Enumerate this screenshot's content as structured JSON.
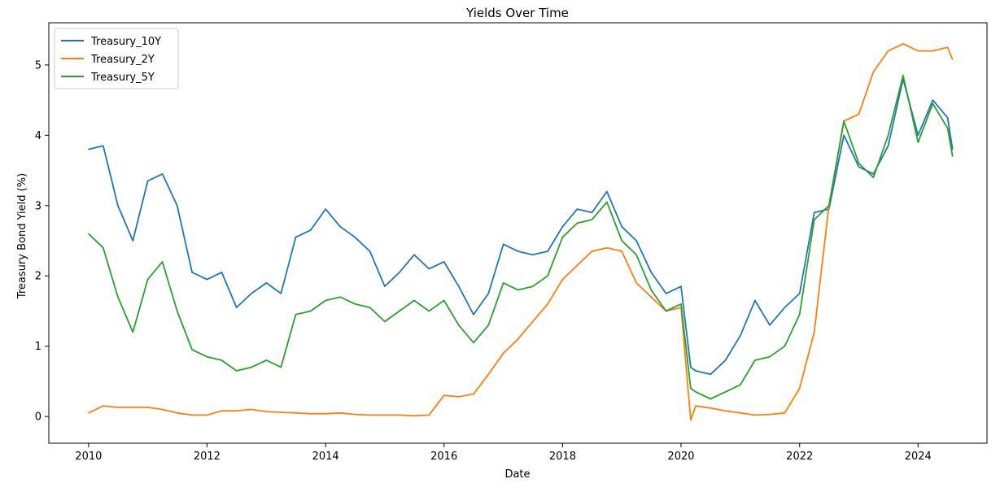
{
  "chart_data": {
    "type": "line",
    "title": "Yields Over Time",
    "xlabel": "Date",
    "ylabel": "Treasury Bond Yield (%)",
    "xlim": [
      "2009-05-01",
      "2025-03-01"
    ],
    "ylim": [
      -0.38,
      5.6
    ],
    "x_ticks": [
      "2010",
      "2012",
      "2014",
      "2016",
      "2018",
      "2020",
      "2022",
      "2024"
    ],
    "y_ticks": [
      0,
      1,
      2,
      3,
      4,
      5
    ],
    "grid": false,
    "legend_position": "top-left",
    "x": [
      "2010-01",
      "2010-04",
      "2010-07",
      "2010-10",
      "2011-01",
      "2011-04",
      "2011-07",
      "2011-10",
      "2012-01",
      "2012-04",
      "2012-07",
      "2012-10",
      "2013-01",
      "2013-04",
      "2013-07",
      "2013-10",
      "2014-01",
      "2014-04",
      "2014-07",
      "2014-10",
      "2015-01",
      "2015-04",
      "2015-07",
      "2015-10",
      "2016-01",
      "2016-04",
      "2016-07",
      "2016-10",
      "2017-01",
      "2017-04",
      "2017-07",
      "2017-10",
      "2018-01",
      "2018-04",
      "2018-07",
      "2018-10",
      "2019-01",
      "2019-04",
      "2019-07",
      "2019-10",
      "2020-01",
      "2020-03",
      "2020-04",
      "2020-07",
      "2020-10",
      "2021-01",
      "2021-04",
      "2021-07",
      "2021-10",
      "2022-01",
      "2022-04",
      "2022-07",
      "2022-10",
      "2023-01",
      "2023-04",
      "2023-07",
      "2023-10",
      "2024-01",
      "2024-04",
      "2024-07",
      "2024-08"
    ],
    "series": [
      {
        "name": "Treasury_10Y",
        "color": "#1f77b4",
        "values": [
          3.8,
          3.85,
          3.0,
          2.5,
          3.35,
          3.45,
          3.0,
          2.05,
          1.95,
          2.05,
          1.55,
          1.75,
          1.9,
          1.75,
          2.55,
          2.65,
          2.95,
          2.7,
          2.55,
          2.35,
          1.85,
          2.05,
          2.3,
          2.1,
          2.2,
          1.85,
          1.45,
          1.75,
          2.45,
          2.35,
          2.3,
          2.35,
          2.7,
          2.95,
          2.9,
          3.2,
          2.7,
          2.5,
          2.05,
          1.75,
          1.85,
          0.7,
          0.65,
          0.6,
          0.8,
          1.15,
          1.65,
          1.3,
          1.55,
          1.75,
          2.9,
          2.95,
          4.0,
          3.55,
          3.45,
          3.85,
          4.8,
          4.0,
          4.5,
          4.25,
          3.8
        ]
      },
      {
        "name": "Treasury_2Y",
        "color": "#ff7f0e",
        "values": [
          0.05,
          0.15,
          0.13,
          0.13,
          0.13,
          0.1,
          0.05,
          0.02,
          0.02,
          0.08,
          0.08,
          0.1,
          0.07,
          0.06,
          0.05,
          0.04,
          0.04,
          0.05,
          0.03,
          0.02,
          0.02,
          0.02,
          0.01,
          0.02,
          0.3,
          0.28,
          0.32,
          0.6,
          0.9,
          1.1,
          1.35,
          1.6,
          1.95,
          2.15,
          2.35,
          2.4,
          2.35,
          1.9,
          1.7,
          1.5,
          1.55,
          -0.05,
          0.15,
          0.12,
          0.08,
          0.05,
          0.02,
          0.03,
          0.05,
          0.4,
          1.2,
          3.0,
          4.2,
          4.3,
          4.9,
          5.2,
          5.3,
          5.2,
          5.2,
          5.25,
          5.08
        ]
      },
      {
        "name": "Treasury_5Y",
        "color": "#2ca02c",
        "values": [
          2.6,
          2.4,
          1.7,
          1.2,
          1.95,
          2.2,
          1.5,
          0.95,
          0.85,
          0.8,
          0.65,
          0.7,
          0.8,
          0.7,
          1.45,
          1.5,
          1.65,
          1.7,
          1.6,
          1.55,
          1.35,
          1.5,
          1.65,
          1.5,
          1.65,
          1.3,
          1.05,
          1.3,
          1.9,
          1.8,
          1.85,
          2.0,
          2.55,
          2.75,
          2.8,
          3.05,
          2.5,
          2.3,
          1.8,
          1.5,
          1.6,
          0.4,
          0.35,
          0.25,
          0.35,
          0.45,
          0.8,
          0.85,
          1.0,
          1.45,
          2.8,
          3.0,
          4.2,
          3.6,
          3.4,
          4.0,
          4.85,
          3.9,
          4.45,
          4.1,
          3.7
        ]
      }
    ]
  }
}
